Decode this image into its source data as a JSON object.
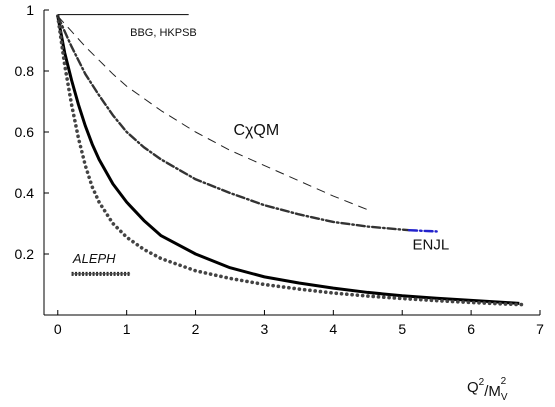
{
  "chart_data": {
    "type": "line",
    "title": "",
    "xlabel": {
      "base": "Q",
      "sup1": "2",
      "slash": "/",
      "base2": "M",
      "sub": "V",
      "sup2": "2"
    },
    "ylabel": "",
    "xlim": [
      -0.2,
      7.0
    ],
    "ylim": [
      0.0,
      1.0
    ],
    "x_ticks": [
      0,
      1,
      2,
      3,
      4,
      5,
      6,
      7
    ],
    "y_ticks": [
      0.2,
      0.4,
      0.6,
      0.8,
      1
    ],
    "grid": false,
    "series": [
      {
        "style": "solid-thick",
        "x": [
          0.0,
          0.1,
          0.2,
          0.3,
          0.4,
          0.5,
          0.6,
          0.8,
          1.0,
          1.25,
          1.5,
          2.0,
          2.5,
          3.0,
          3.5,
          4.0,
          4.5,
          5.0,
          5.5,
          6.0,
          6.5,
          6.7
        ],
        "y": [
          0.98,
          0.86,
          0.77,
          0.69,
          0.62,
          0.56,
          0.51,
          0.43,
          0.37,
          0.31,
          0.26,
          0.2,
          0.155,
          0.125,
          0.105,
          0.088,
          0.074,
          0.063,
          0.055,
          0.048,
          0.041,
          0.038
        ]
      },
      {
        "style": "dotted",
        "x": [
          0.0,
          0.1,
          0.2,
          0.3,
          0.4,
          0.5,
          0.6,
          0.8,
          1.0,
          1.25,
          1.5,
          2.0,
          2.5,
          3.0,
          3.5,
          4.0,
          4.5,
          5.0,
          5.5,
          6.0,
          6.5,
          6.75
        ],
        "y": [
          0.98,
          0.82,
          0.69,
          0.58,
          0.49,
          0.42,
          0.37,
          0.3,
          0.255,
          0.215,
          0.185,
          0.145,
          0.12,
          0.1,
          0.085,
          0.072,
          0.062,
          0.054,
          0.047,
          0.041,
          0.036,
          0.034
        ]
      },
      {
        "style": "dash-dot",
        "x": [
          0.0,
          0.2,
          0.4,
          0.6,
          0.8,
          1.0,
          1.25,
          1.5,
          2.0,
          2.5,
          3.0,
          3.5,
          4.0,
          4.5,
          5.0,
          5.1
        ],
        "y": [
          0.98,
          0.88,
          0.79,
          0.72,
          0.655,
          0.6,
          0.55,
          0.51,
          0.445,
          0.4,
          0.36,
          0.33,
          0.305,
          0.29,
          0.28,
          0.278
        ]
      },
      {
        "style": "dash-dot-blue",
        "x": [
          5.1,
          5.2,
          5.3,
          5.4,
          5.5
        ],
        "y": [
          0.278,
          0.277,
          0.276,
          0.275,
          0.274
        ]
      },
      {
        "style": "dashed",
        "x": [
          0.0,
          0.2,
          0.4,
          0.6,
          0.8,
          1.0,
          1.25,
          1.5,
          2.0,
          2.5,
          3.0,
          3.5,
          4.0,
          4.5
        ],
        "y": [
          0.98,
          0.93,
          0.88,
          0.835,
          0.79,
          0.75,
          0.71,
          0.67,
          0.6,
          0.54,
          0.49,
          0.44,
          0.39,
          0.345
        ]
      },
      {
        "style": "solid-thin",
        "x": [
          0.0,
          1.9
        ],
        "y": [
          0.985,
          0.985
        ]
      },
      {
        "style": "hatched",
        "x": [
          0.2,
          1.05
        ],
        "y": [
          0.135,
          0.135
        ]
      }
    ],
    "annotations": [
      {
        "text": "BBG, HKPSB",
        "x": 1.05,
        "y": 0.915,
        "size": 11,
        "style": "normal"
      },
      {
        "text": "CχQM",
        "x": 2.55,
        "y": 0.59,
        "size": 16,
        "style": "normal"
      },
      {
        "text": "ENJL",
        "x": 5.15,
        "y": 0.215,
        "size": 15,
        "style": "normal"
      },
      {
        "text": "ALEPH",
        "x": 0.22,
        "y": 0.17,
        "size": 13,
        "style": "italic"
      }
    ]
  }
}
